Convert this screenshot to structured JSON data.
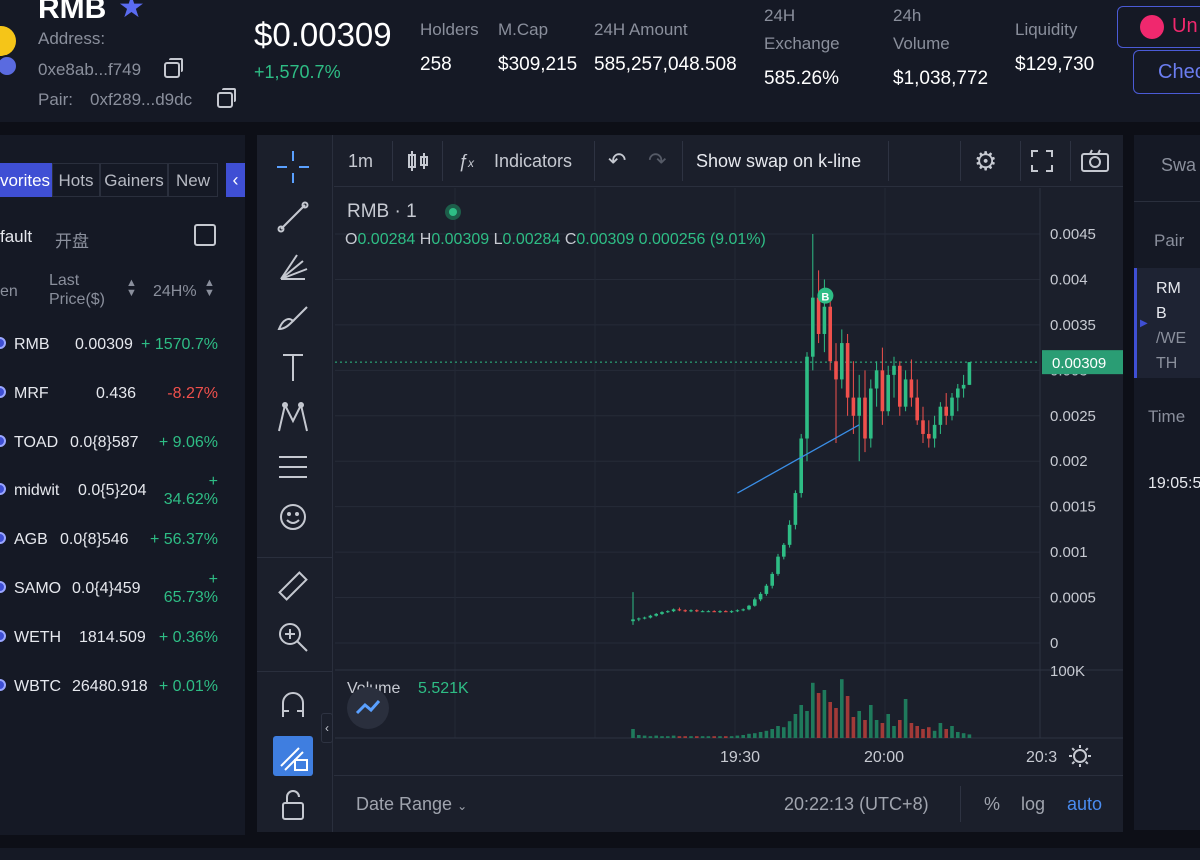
{
  "header": {
    "token_name": "RMB",
    "address_label": "Address:",
    "address_value": "0xe8ab...f749",
    "pair_label": "Pair:",
    "pair_value": "0xf289...d9dc",
    "price": "$0.00309",
    "price_change": "+1,570.7%",
    "stats": [
      {
        "label": "Holders",
        "value": "258"
      },
      {
        "label": "M.Cap",
        "value": "$309,215"
      },
      {
        "label": "24H Amount",
        "value": "585,257,048.508"
      },
      {
        "label_line1": "24H",
        "label_line2": "Exchange",
        "value": "585.26%"
      },
      {
        "label_line1": "24h",
        "label_line2": "Volume",
        "value": "$1,038,772"
      },
      {
        "label": "Liquidity",
        "value": "$129,730"
      }
    ],
    "btn_uniswap": "Un",
    "btn_check": "Chec"
  },
  "left": {
    "tabs": [
      "vorites",
      "Hots",
      "Gainers",
      "New"
    ],
    "filter_default": "fault",
    "filter_open": "开盘",
    "col_token": "en",
    "col_price_1": "Last",
    "col_price_2": "Price($)",
    "col_change": "24H%",
    "tokens": [
      {
        "name": "RMB",
        "price": "0.00309",
        "change": "+ 1570.7%",
        "dir": "up"
      },
      {
        "name": "MRF",
        "price": "0.436",
        "change": "-8.27%",
        "dir": "down"
      },
      {
        "name": "TOAD",
        "price": "0.0{8}587",
        "change": "+ 9.06%",
        "dir": "up"
      },
      {
        "name": "midwit",
        "price": "0.0{5}204",
        "change_1": "+",
        "change_2": "34.62%",
        "dir": "up"
      },
      {
        "name": "AGB",
        "price": "0.0{8}546",
        "change": "+ 56.37%",
        "dir": "up"
      },
      {
        "name": "SAMO",
        "price": "0.0{4}459",
        "change_1": "+",
        "change_2": "65.73%",
        "dir": "up"
      },
      {
        "name": "WETH",
        "price": "1814.509",
        "change": "+ 0.36%",
        "dir": "up"
      },
      {
        "name": "WBTC",
        "price": "26480.918",
        "change": "+ 0.01%",
        "dir": "up"
      }
    ]
  },
  "toolbar": {
    "interval": "1m",
    "indicators": "Indicators",
    "show_swap": "Show swap on k-line"
  },
  "legend": {
    "symbol": "RMB · 1",
    "o_label": "O",
    "o": "0.00284",
    "h_label": "H",
    "h": "0.00309",
    "l_label": "L",
    "l": "0.00284",
    "c_label": "C",
    "c": "0.00309",
    "change": "0.000256 (9.01%)",
    "volume_label": "Volume",
    "volume_value": "5.521K"
  },
  "chart_data": {
    "type": "candlestick",
    "price_axis": [
      "0.0045",
      "0.004",
      "0.0035",
      "0.003",
      "0.0025",
      "0.002",
      "0.0015",
      "0.001",
      "0.0005",
      "0"
    ],
    "ylim": [
      0,
      0.0045
    ],
    "current_price_label": "0.00309",
    "current_price": 0.00309,
    "volume_axis_label": "100K",
    "time_axis": [
      "19:30",
      "20:00",
      "20:3"
    ],
    "buy_marker": "B",
    "trend_line": [
      [
        18,
        0.00165
      ],
      [
        39,
        0.0024
      ]
    ],
    "candles": [
      [
        0.00024,
        0.00056,
        0.0002,
        0.00026
      ],
      [
        0.00026,
        0.00028,
        0.00024,
        0.00027
      ],
      [
        0.00027,
        0.00029,
        0.00026,
        0.00028
      ],
      [
        0.00028,
        0.00031,
        0.00027,
        0.0003
      ],
      [
        0.0003,
        0.00033,
        0.00029,
        0.00032
      ],
      [
        0.00032,
        0.00035,
        0.00031,
        0.00034
      ],
      [
        0.00034,
        0.00036,
        0.00033,
        0.00035
      ],
      [
        0.00035,
        0.00038,
        0.00034,
        0.00037
      ],
      [
        0.00037,
        0.00039,
        0.00035,
        0.00036
      ],
      [
        0.00036,
        0.00037,
        0.00034,
        0.00035
      ],
      [
        0.00035,
        0.00037,
        0.00034,
        0.00036
      ],
      [
        0.00036,
        0.00037,
        0.00034,
        0.00035
      ],
      [
        0.00035,
        0.00036,
        0.00034,
        0.00035
      ],
      [
        0.00035,
        0.00036,
        0.00034,
        0.00035
      ],
      [
        0.00035,
        0.00036,
        0.00034,
        0.00034
      ],
      [
        0.00034,
        0.00036,
        0.00033,
        0.00035
      ],
      [
        0.00035,
        0.00036,
        0.00034,
        0.00034
      ],
      [
        0.00034,
        0.00036,
        0.00033,
        0.00035
      ],
      [
        0.00035,
        0.00037,
        0.00034,
        0.00036
      ],
      [
        0.00036,
        0.00038,
        0.00035,
        0.00037
      ],
      [
        0.00037,
        0.00042,
        0.00036,
        0.00041
      ],
      [
        0.00041,
        0.0005,
        0.0004,
        0.00048
      ],
      [
        0.00048,
        0.00056,
        0.00046,
        0.00054
      ],
      [
        0.00054,
        0.00065,
        0.00052,
        0.00063
      ],
      [
        0.00063,
        0.00078,
        0.0006,
        0.00076
      ],
      [
        0.00076,
        0.00098,
        0.00074,
        0.00095
      ],
      [
        0.00095,
        0.0011,
        0.00092,
        0.00108
      ],
      [
        0.00108,
        0.00135,
        0.00105,
        0.0013
      ],
      [
        0.0013,
        0.00168,
        0.00125,
        0.00165
      ],
      [
        0.00165,
        0.0023,
        0.0016,
        0.00225
      ],
      [
        0.00225,
        0.0032,
        0.002,
        0.00315
      ],
      [
        0.00315,
        0.0045,
        0.003,
        0.0038
      ],
      [
        0.0038,
        0.0041,
        0.0033,
        0.0034
      ],
      [
        0.0034,
        0.004,
        0.0032,
        0.0037
      ],
      [
        0.0037,
        0.00385,
        0.003,
        0.0031
      ],
      [
        0.0031,
        0.0033,
        0.0022,
        0.0029
      ],
      [
        0.0029,
        0.00345,
        0.0028,
        0.0033
      ],
      [
        0.0033,
        0.0034,
        0.0025,
        0.0027
      ],
      [
        0.0027,
        0.0031,
        0.0023,
        0.0025
      ],
      [
        0.0025,
        0.00295,
        0.002,
        0.0027
      ],
      [
        0.0027,
        0.003,
        0.0021,
        0.00225
      ],
      [
        0.00225,
        0.0029,
        0.00215,
        0.0028
      ],
      [
        0.0028,
        0.0031,
        0.0026,
        0.003
      ],
      [
        0.003,
        0.00325,
        0.0024,
        0.00255
      ],
      [
        0.00255,
        0.00305,
        0.0025,
        0.00295
      ],
      [
        0.00295,
        0.00315,
        0.0027,
        0.00305
      ],
      [
        0.00305,
        0.0031,
        0.0025,
        0.0026
      ],
      [
        0.0026,
        0.003,
        0.00255,
        0.0029
      ],
      [
        0.0029,
        0.00312,
        0.0026,
        0.0027
      ],
      [
        0.0027,
        0.0029,
        0.0024,
        0.00245
      ],
      [
        0.00245,
        0.0026,
        0.0022,
        0.0023
      ],
      [
        0.0023,
        0.00245,
        0.00215,
        0.00225
      ],
      [
        0.00225,
        0.0025,
        0.00215,
        0.0024
      ],
      [
        0.0024,
        0.00265,
        0.0023,
        0.0026
      ],
      [
        0.0026,
        0.00275,
        0.0024,
        0.0025
      ],
      [
        0.0025,
        0.00275,
        0.00245,
        0.0027
      ],
      [
        0.0027,
        0.00285,
        0.00255,
        0.0028
      ],
      [
        0.0028,
        0.00295,
        0.0027,
        0.00284
      ],
      [
        0.00284,
        0.00309,
        0.00284,
        0.00309
      ]
    ],
    "volumes": [
      0.15,
      0.05,
      0.04,
      0.03,
      0.04,
      0.03,
      0.03,
      0.04,
      0.03,
      0.03,
      0.03,
      0.03,
      0.03,
      0.03,
      0.03,
      0.03,
      0.03,
      0.03,
      0.04,
      0.05,
      0.07,
      0.08,
      0.1,
      0.12,
      0.15,
      0.2,
      0.18,
      0.28,
      0.4,
      0.55,
      0.45,
      0.92,
      0.75,
      0.8,
      0.6,
      0.5,
      0.98,
      0.7,
      0.35,
      0.45,
      0.3,
      0.55,
      0.3,
      0.25,
      0.4,
      0.2,
      0.3,
      0.65,
      0.25,
      0.2,
      0.15,
      0.18,
      0.12,
      0.25,
      0.15,
      0.2,
      0.1,
      0.08,
      0.06
    ]
  },
  "bottom": {
    "date_range": "Date Range",
    "clock": "20:22:13 (UTC+8)",
    "pct": "%",
    "log": "log",
    "auto": "auto"
  },
  "right": {
    "tab": "Swa",
    "pair_label": "Pair",
    "pair_1": "RM",
    "pair_2": "B",
    "pair_3": "/WE",
    "pair_4": "TH",
    "time_label": "Time",
    "time_value": "19:05:5"
  },
  "colors": {
    "up": "#2ebd85",
    "down": "#f0504c",
    "accent": "#3f4fd4",
    "bg": "#1b1f2b"
  }
}
